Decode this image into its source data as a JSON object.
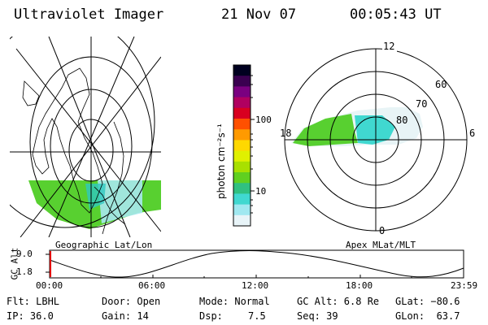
{
  "header": {
    "instrument": "Ultraviolet Imager",
    "date": "21 Nov 07",
    "time": "00:05:43 UT"
  },
  "maps": {
    "left_label": "Geographic Lat/Lon",
    "right_label": "Apex MLat/MLT"
  },
  "polar_labels": {
    "mlt_top": "12",
    "mlt_left": "18",
    "mlt_right": "6",
    "mlt_bottom": "0",
    "lat_60": "60",
    "lat_70": "70",
    "lat_80": "80"
  },
  "colorbar": {
    "unit": "photon cm⁻²s⁻¹",
    "tick_100": "100",
    "tick_10": "10",
    "colors": [
      "#000020",
      "#3a0050",
      "#7a0080",
      "#b00060",
      "#d80020",
      "#ff5000",
      "#ff9a00",
      "#ffd800",
      "#e0f000",
      "#a8e000",
      "#60d020",
      "#30c080",
      "#40d8d0",
      "#a0e8f0",
      "#e8f4f8"
    ]
  },
  "timeline": {
    "axis_label": "GC Alt",
    "ytick_top": "9.0",
    "ytick_bottom": "1.8",
    "x_ticks": [
      "00:00",
      "06:00",
      "12:00",
      "18:00",
      "23:59"
    ],
    "marker_color": "#e00000"
  },
  "info": {
    "filter": "Flt: LBHL",
    "ip": "IP: 36.0",
    "door": "Door: Open",
    "gain": "Gain: 14",
    "mode": "Mode: Normal",
    "dsp_label": "Dsp:",
    "dsp_value": "7.5",
    "gc_alt": "GC Alt: 6.8 Re",
    "seq": "Seq: 39",
    "glat": "GLat: −80.6",
    "glon": "GLon:  63.7"
  }
}
